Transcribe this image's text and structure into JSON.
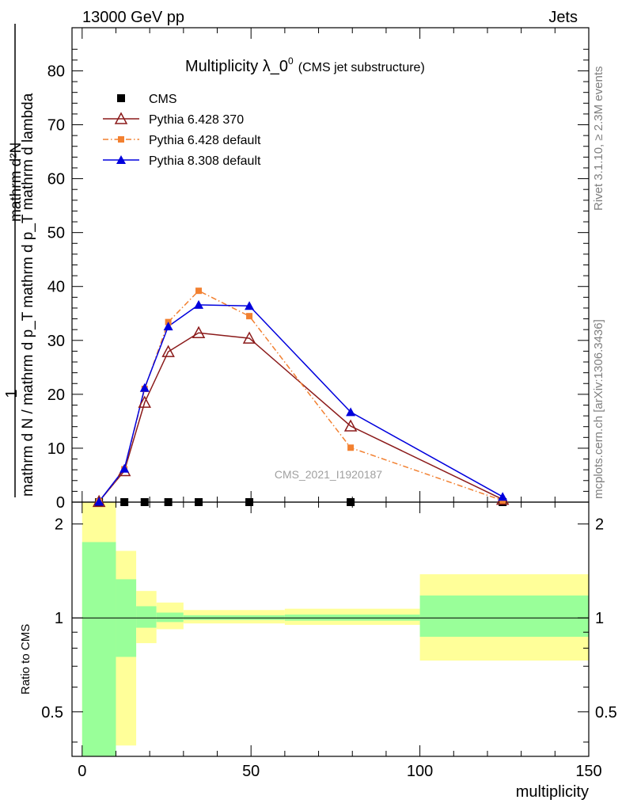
{
  "header": {
    "left": "13000 GeV pp",
    "right": "Jets"
  },
  "side_labels": {
    "rivet": "Rivet 3.1.10, ≥ 2.3M events",
    "mcplots": "mcplots.cern.ch [arXiv:1306.3436]"
  },
  "watermark": "CMS_2021_I1920187",
  "chart_data": [
    {
      "type": "line",
      "title_main": "Multiplicity λ_0",
      "title_sup": "0",
      "title_sub": "(CMS jet substructure)",
      "ylabel_top": "1",
      "ylabel_denominator": "mathrm d N / mathrm d p_T mathrm d p_T mathrm d lambda",
      "ylabel_numerator": "mathrm d²N",
      "xlim": [
        -3,
        150
      ],
      "ylim": [
        0,
        88
      ],
      "yticks": [
        0,
        10,
        20,
        30,
        40,
        50,
        60,
        70,
        80
      ],
      "legend_position": "top-left",
      "series": [
        {
          "name": "CMS",
          "color": "#000000",
          "marker": "square",
          "x": [
            5,
            12.5,
            18.5,
            25.5,
            34.5,
            49.5,
            79.5,
            124.5
          ],
          "y": [
            0,
            0,
            0,
            0,
            0,
            0,
            0,
            0
          ]
        },
        {
          "name": "Pythia 6.428 370",
          "color": "#8b1a1a",
          "marker": "open-triangle",
          "dash": "solid",
          "x": [
            5,
            12.5,
            18.5,
            25.5,
            34.5,
            49.5,
            79.5,
            124.5
          ],
          "y": [
            0.1,
            5.8,
            18.5,
            27.9,
            31.4,
            30.4,
            14.1,
            0.5
          ]
        },
        {
          "name": "Pythia 6.428 default",
          "color": "#f28030",
          "marker": "square",
          "dash": "dashdot",
          "x": [
            5,
            12.5,
            18.5,
            25.5,
            34.5,
            49.5,
            79.5,
            124.5
          ],
          "y": [
            0.1,
            6.1,
            21.0,
            33.4,
            39.2,
            34.5,
            10.1,
            0.3
          ]
        },
        {
          "name": "Pythia 8.308 default",
          "color": "#0000dd",
          "marker": "triangle",
          "dash": "solid",
          "x": [
            5,
            12.5,
            18.5,
            25.5,
            34.5,
            49.5,
            79.5,
            124.5
          ],
          "y": [
            0.1,
            6.2,
            21.2,
            32.6,
            36.6,
            36.4,
            16.7,
            1.0
          ]
        }
      ]
    },
    {
      "type": "area",
      "ylabel": "Ratio to CMS",
      "xlabel": "multiplicity",
      "xlim": [
        -3,
        150
      ],
      "ylim": [
        0.36,
        2.35
      ],
      "log_y": true,
      "xticks": [
        0,
        50,
        100,
        150
      ],
      "yticks": [
        "0.5",
        "1",
        "2"
      ],
      "bands": [
        {
          "xlo": 0,
          "xhi": 10,
          "inner": [
            0.35,
            1.75
          ],
          "outer": [
            0.35,
            2.35
          ]
        },
        {
          "xlo": 10,
          "xhi": 16,
          "inner": [
            0.75,
            1.33
          ],
          "outer": [
            0.39,
            1.64
          ]
        },
        {
          "xlo": 16,
          "xhi": 22,
          "inner": [
            0.93,
            1.09
          ],
          "outer": [
            0.83,
            1.22
          ]
        },
        {
          "xlo": 22,
          "xhi": 30,
          "inner": [
            0.97,
            1.04
          ],
          "outer": [
            0.92,
            1.12
          ]
        },
        {
          "xlo": 30,
          "xhi": 60,
          "inner": [
            0.985,
            1.02
          ],
          "outer": [
            0.96,
            1.06
          ]
        },
        {
          "xlo": 60,
          "xhi": 100,
          "inner": [
            0.98,
            1.025
          ],
          "outer": [
            0.95,
            1.07
          ]
        },
        {
          "xlo": 100,
          "xhi": 150,
          "inner": [
            0.87,
            1.18
          ],
          "outer": [
            0.73,
            1.38
          ]
        }
      ]
    }
  ]
}
